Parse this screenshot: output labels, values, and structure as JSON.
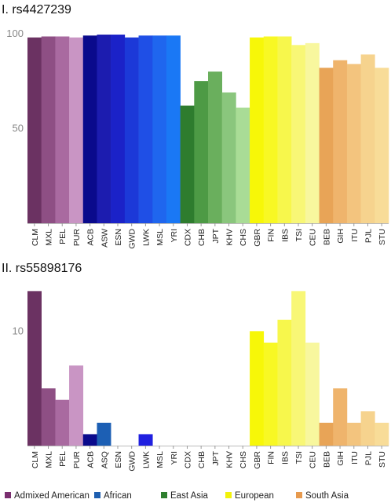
{
  "chart_data": [
    {
      "type": "bar",
      "title": "I. rs4427239",
      "categories": [
        "CLM",
        "MXL",
        "PEL",
        "PUR",
        "ACB",
        "ASW",
        "ESN",
        "GWD",
        "LWK",
        "MSL",
        "YRI",
        "CDX",
        "CHB",
        "JPT",
        "KHV",
        "CHS",
        "GBR",
        "FIN",
        "IBS",
        "TSI",
        "CEU",
        "BEB",
        "GIH",
        "ITU",
        "PJL",
        "STU"
      ],
      "values": [
        98,
        98.5,
        98.5,
        98,
        99,
        99.5,
        99.5,
        98,
        99,
        99,
        99,
        62,
        75,
        80,
        69,
        61,
        98,
        98.5,
        98.5,
        94,
        95,
        82,
        86,
        84,
        89,
        82
      ],
      "colors": [
        "#6b3262",
        "#8e4f84",
        "#a96aa0",
        "#c995c4",
        "#0a0a8c",
        "#1c1caf",
        "#1b22c8",
        "#1c39d8",
        "#1f4fe6",
        "#1f66ee",
        "#1a78f5",
        "#2e7c2e",
        "#4d9a45",
        "#6aaf5d",
        "#8ac67d",
        "#a9dc96",
        "#f7f708",
        "#f8f824",
        "#f7f74c",
        "#f8f776",
        "#f8f79e",
        "#e8a457",
        "#efb46c",
        "#f3c47e",
        "#f6d38e",
        "#f8dc98"
      ],
      "ylim": [
        0,
        102
      ],
      "yticks": [
        50,
        100
      ],
      "ytick_labels": [
        "50",
        "100"
      ]
    },
    {
      "type": "bar",
      "title": "II. rs55898176",
      "categories": [
        "CLM",
        "MXL",
        "PEL",
        "PUR",
        "ACB",
        "ASQ",
        "ESN",
        "GWD",
        "LWK",
        "MSL",
        "YRI",
        "CDX",
        "CHB",
        "JPT",
        "KHV",
        "CHS",
        "GBR",
        "FIN",
        "IBS",
        "TSI",
        "CEU",
        "BEB",
        "GIH",
        "ITU",
        "PJL",
        "STU"
      ],
      "values": [
        13.5,
        5,
        4,
        7,
        1,
        2,
        0,
        0,
        1,
        0,
        0,
        0,
        0,
        0,
        0,
        0,
        10,
        9,
        11,
        13.5,
        9,
        2,
        5,
        2,
        3,
        2
      ],
      "colors": [
        "#6b3262",
        "#8e4f84",
        "#a96aa0",
        "#c995c4",
        "#0a0a8c",
        "#1c5fb4",
        "#1b22c8",
        "#1c39d8",
        "#2020e0",
        "#1f66ee",
        "#1a78f5",
        "#2e7c2e",
        "#4d9a45",
        "#6aaf5d",
        "#8ac67d",
        "#a9dc96",
        "#f7f708",
        "#f8f824",
        "#f7f74c",
        "#f8f776",
        "#f8f79e",
        "#e8a457",
        "#efb46c",
        "#f3c47e",
        "#f6d38e",
        "#f8dc98"
      ],
      "ylim": [
        0,
        13.8
      ],
      "yticks": [
        10
      ],
      "ytick_labels": [
        "10"
      ]
    }
  ],
  "legend": [
    {
      "label": "Admixed American",
      "color": "#7a2f6f"
    },
    {
      "label": "African",
      "color": "#1f5fb0"
    },
    {
      "label": "East Asia",
      "color": "#2f7f2f"
    },
    {
      "label": "European",
      "color": "#f2f20a"
    },
    {
      "label": "South Asia",
      "color": "#e79a4e"
    }
  ]
}
